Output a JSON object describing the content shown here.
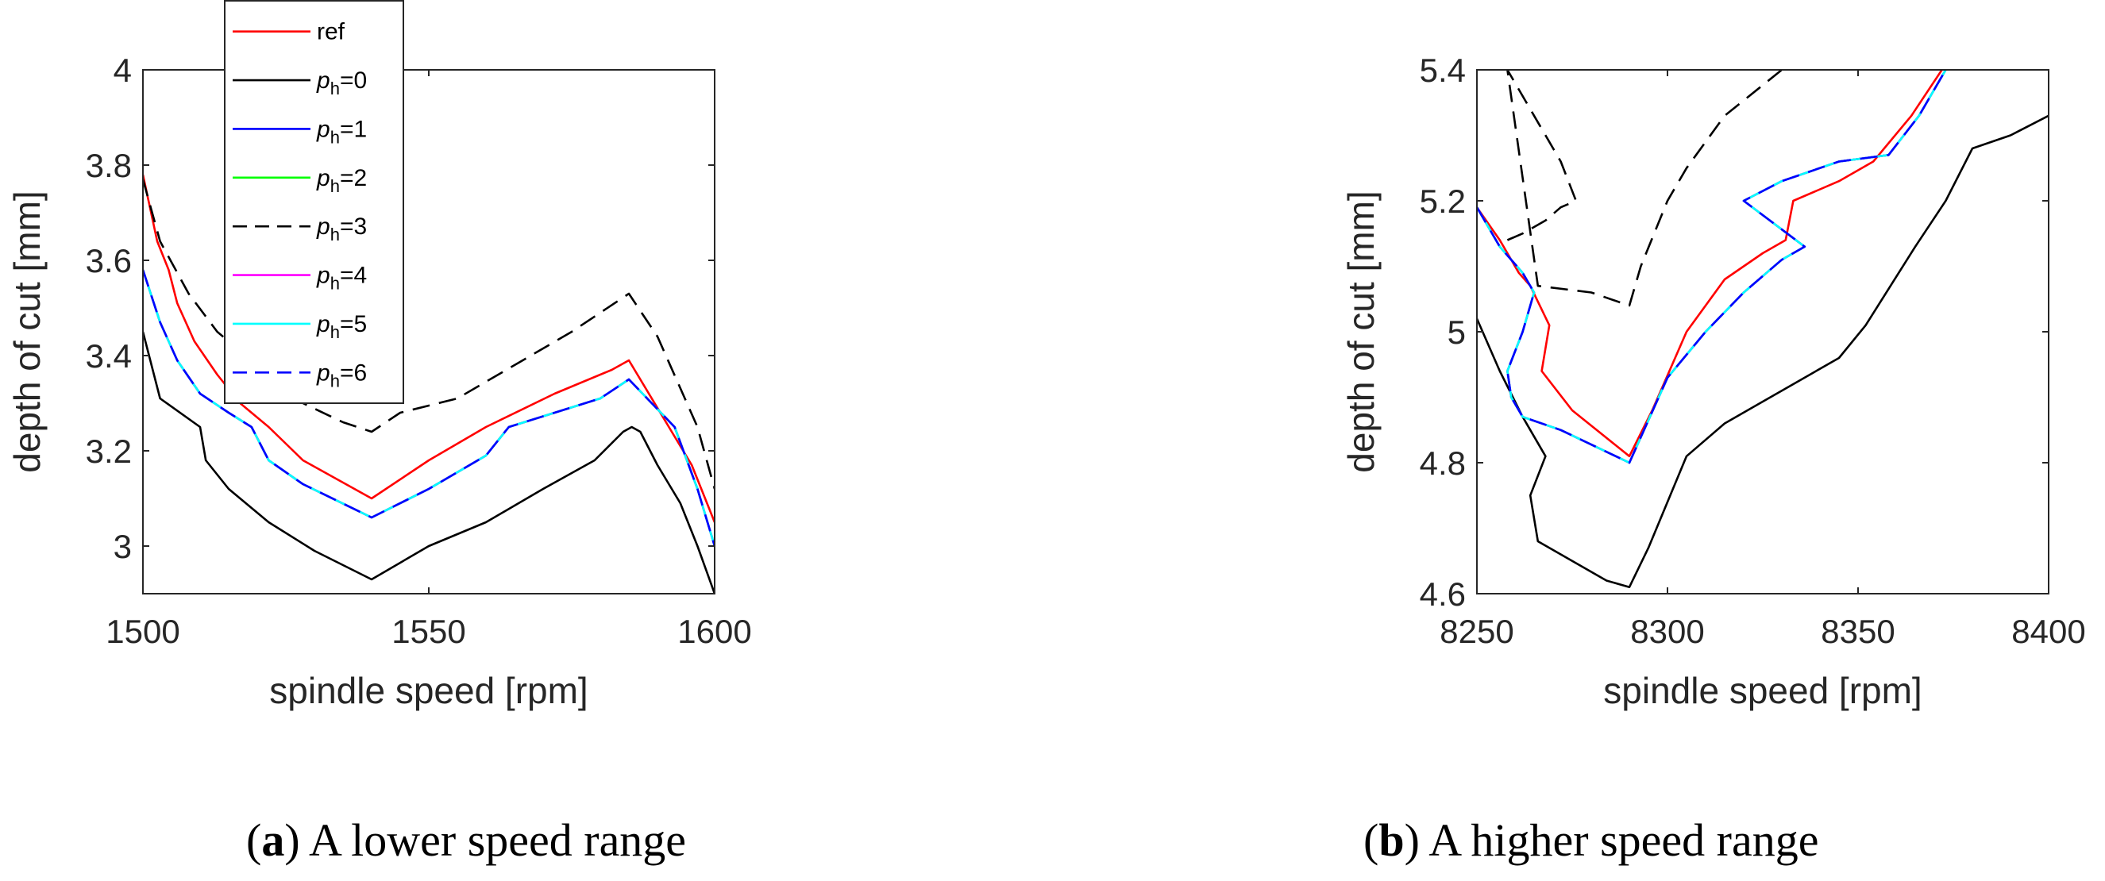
{
  "figure": {
    "captions": [
      {
        "letter": "a",
        "text": "A lower speed range"
      },
      {
        "letter": "b",
        "text": "A higher speed range"
      }
    ]
  },
  "chart_data": [
    {
      "type": "line",
      "panel": "a",
      "xlabel": "spindle speed [rpm]",
      "ylabel": "depth of cut [mm]",
      "xlim": [
        1500,
        1600
      ],
      "ylim": [
        2.9,
        4.0
      ],
      "xticks": [
        1500,
        1550,
        1600
      ],
      "yticks": [
        3,
        3.2,
        3.4,
        3.6,
        3.8,
        4
      ],
      "ytick_labels": [
        "3",
        "3.2",
        "3.4",
        "3.6",
        "3.8",
        "4"
      ],
      "grid": false,
      "legend": {
        "location": "top-left",
        "entries": [
          {
            "label": "ref",
            "color": "#ff0000",
            "dash": "solid"
          },
          {
            "label": "p_h=0",
            "base": "p",
            "sub": "h",
            "suffix": "=0",
            "color": "#000000",
            "dash": "solid"
          },
          {
            "label": "p_h=1",
            "base": "p",
            "sub": "h",
            "suffix": "=1",
            "color": "#0000ff",
            "dash": "solid"
          },
          {
            "label": "p_h=2",
            "base": "p",
            "sub": "h",
            "suffix": "=2",
            "color": "#00ff00",
            "dash": "solid"
          },
          {
            "label": "p_h=3",
            "base": "p",
            "sub": "h",
            "suffix": "=3",
            "color": "#000000",
            "dash": "dashed"
          },
          {
            "label": "p_h=4",
            "base": "p",
            "sub": "h",
            "suffix": "=4",
            "color": "#ff00ff",
            "dash": "solid"
          },
          {
            "label": "p_h=5",
            "base": "p",
            "sub": "h",
            "suffix": "=5",
            "color": "#00ffff",
            "dash": "solid"
          },
          {
            "label": "p_h=6",
            "base": "p",
            "sub": "h",
            "suffix": "=6",
            "color": "#0000ff",
            "dash": "dashed"
          }
        ]
      },
      "series": [
        {
          "name": "ref",
          "color": "#ff0000",
          "dash": "solid",
          "x": [
            1500,
            1502.5,
            1504.5,
            1506,
            1509,
            1513,
            1517,
            1522,
            1528,
            1540,
            1550,
            1560,
            1572,
            1582,
            1585,
            1592,
            1596,
            1600
          ],
          "y": [
            3.78,
            3.64,
            3.58,
            3.51,
            3.43,
            3.36,
            3.3,
            3.25,
            3.18,
            3.1,
            3.18,
            3.25,
            3.32,
            3.37,
            3.39,
            3.25,
            3.17,
            3.05
          ]
        },
        {
          "name": "p_h=0",
          "color": "#000000",
          "dash": "solid",
          "x": [
            1500,
            1503,
            1510,
            1511,
            1515,
            1522,
            1530,
            1540,
            1550,
            1560,
            1570,
            1579,
            1584,
            1585.5,
            1587,
            1590,
            1594,
            1597,
            1600
          ],
          "y": [
            3.45,
            3.31,
            3.25,
            3.18,
            3.12,
            3.05,
            2.99,
            2.93,
            3.0,
            3.05,
            3.12,
            3.18,
            3.24,
            3.25,
            3.24,
            3.17,
            3.09,
            3.0,
            2.9
          ]
        },
        {
          "name": "p_h=1",
          "color": "#0000ff",
          "dash": "solid",
          "x": [
            1500,
            1503,
            1506,
            1510,
            1515,
            1519,
            1522,
            1528,
            1540,
            1550,
            1560,
            1564,
            1572,
            1580,
            1585,
            1589,
            1593,
            1597,
            1600
          ],
          "y": [
            3.58,
            3.47,
            3.39,
            3.32,
            3.28,
            3.25,
            3.18,
            3.13,
            3.06,
            3.12,
            3.19,
            3.25,
            3.28,
            3.31,
            3.35,
            3.3,
            3.25,
            3.12,
            3.0
          ]
        },
        {
          "name": "p_h=2",
          "color": "#00ff00",
          "dash": "solid",
          "x": [
            1500,
            1503,
            1506,
            1510,
            1515,
            1519,
            1522,
            1528,
            1540,
            1550,
            1560,
            1564,
            1572,
            1580,
            1585,
            1589,
            1593,
            1597,
            1600
          ],
          "y": [
            3.58,
            3.47,
            3.39,
            3.32,
            3.28,
            3.25,
            3.18,
            3.13,
            3.06,
            3.12,
            3.19,
            3.25,
            3.28,
            3.31,
            3.35,
            3.3,
            3.25,
            3.12,
            3.0
          ]
        },
        {
          "name": "p_h=3",
          "color": "#000000",
          "dash": "dashed",
          "x": [
            1500,
            1503,
            1508,
            1513,
            1520,
            1528,
            1535,
            1540,
            1545,
            1555,
            1565,
            1575,
            1585,
            1590,
            1597,
            1600
          ],
          "y": [
            3.77,
            3.64,
            3.53,
            3.45,
            3.38,
            3.3,
            3.26,
            3.24,
            3.28,
            3.31,
            3.38,
            3.45,
            3.53,
            3.44,
            3.25,
            3.12
          ]
        },
        {
          "name": "p_h=4",
          "color": "#ff00ff",
          "dash": "solid",
          "x": [
            1500,
            1503,
            1506,
            1510,
            1515,
            1519,
            1522,
            1528,
            1540,
            1550,
            1560,
            1564,
            1572,
            1580,
            1585,
            1589,
            1593,
            1597,
            1600
          ],
          "y": [
            3.58,
            3.47,
            3.39,
            3.32,
            3.28,
            3.25,
            3.18,
            3.13,
            3.06,
            3.12,
            3.19,
            3.25,
            3.28,
            3.31,
            3.35,
            3.3,
            3.25,
            3.12,
            3.0
          ]
        },
        {
          "name": "p_h=5",
          "color": "#00ffff",
          "dash": "solid",
          "x": [
            1500,
            1503,
            1506,
            1510,
            1515,
            1519,
            1522,
            1528,
            1540,
            1550,
            1560,
            1564,
            1572,
            1580,
            1585,
            1589,
            1593,
            1597,
            1600
          ],
          "y": [
            3.58,
            3.47,
            3.39,
            3.32,
            3.28,
            3.25,
            3.18,
            3.13,
            3.06,
            3.12,
            3.19,
            3.25,
            3.28,
            3.31,
            3.35,
            3.3,
            3.25,
            3.12,
            3.0
          ]
        },
        {
          "name": "p_h=6",
          "color": "#0000ff",
          "dash": "dashed",
          "x": [
            1500,
            1503,
            1506,
            1510,
            1515,
            1519,
            1522,
            1528,
            1540,
            1550,
            1560,
            1564,
            1572,
            1580,
            1585,
            1589,
            1593,
            1597,
            1600
          ],
          "y": [
            3.58,
            3.47,
            3.39,
            3.32,
            3.28,
            3.25,
            3.18,
            3.13,
            3.06,
            3.12,
            3.19,
            3.25,
            3.28,
            3.31,
            3.35,
            3.3,
            3.25,
            3.12,
            3.0
          ]
        }
      ]
    },
    {
      "type": "line",
      "panel": "b",
      "xlabel": "spindle speed [rpm]",
      "ylabel": "depth of cut [mm]",
      "xlim": [
        8250,
        8400
      ],
      "ylim": [
        4.6,
        5.4
      ],
      "xticks": [
        8250,
        8300,
        8350,
        8400
      ],
      "yticks": [
        4.6,
        4.8,
        5,
        5.2,
        5.4
      ],
      "ytick_labels": [
        "4.6",
        "4.8",
        "5",
        "5.2",
        "5.4"
      ],
      "grid": false,
      "series": [
        {
          "name": "ref",
          "color": "#ff0000",
          "dash": "solid",
          "x": [
            8250,
            8256,
            8261,
            8264,
            8269,
            8267,
            8275,
            8290,
            8296,
            8305,
            8315,
            8325,
            8331,
            8333,
            8345,
            8354,
            8364,
            8372
          ],
          "y": [
            5.19,
            5.14,
            5.09,
            5.07,
            5.01,
            4.94,
            4.88,
            4.81,
            4.88,
            5.0,
            5.08,
            5.12,
            5.14,
            5.2,
            5.23,
            5.26,
            5.33,
            5.4
          ]
        },
        {
          "name": "p_h=0",
          "color": "#000000",
          "dash": "solid",
          "x": [
            8250,
            8256,
            8262,
            8268,
            8264,
            8266,
            8284,
            8290,
            8295,
            8305,
            8315,
            8330,
            8345,
            8352,
            8365,
            8373,
            8380,
            8390,
            8400
          ],
          "y": [
            5.02,
            4.94,
            4.87,
            4.81,
            4.75,
            4.68,
            4.62,
            4.61,
            4.67,
            4.81,
            4.86,
            4.91,
            4.96,
            5.01,
            5.13,
            5.2,
            5.28,
            5.3,
            5.33
          ]
        },
        {
          "name": "p_h=1",
          "color": "#0000ff",
          "dash": "solid",
          "x": [
            8250,
            8256,
            8262,
            8265,
            8262,
            8258,
            8259,
            8262,
            8272,
            8290,
            8300,
            8310,
            8320,
            8330,
            8336,
            8320,
            8330,
            8345,
            8358,
            8366,
            8373
          ],
          "y": [
            5.19,
            5.13,
            5.09,
            5.06,
            5.0,
            4.94,
            4.9,
            4.87,
            4.85,
            4.8,
            4.93,
            5.0,
            5.06,
            5.11,
            5.13,
            5.2,
            5.23,
            5.26,
            5.27,
            5.33,
            5.4
          ]
        },
        {
          "name": "p_h=2",
          "color": "#00ff00",
          "dash": "solid",
          "x": [
            8250,
            8256,
            8262,
            8265,
            8262,
            8258,
            8259,
            8262,
            8272,
            8290,
            8300,
            8310,
            8320,
            8330,
            8336,
            8320,
            8330,
            8345,
            8358,
            8366,
            8373
          ],
          "y": [
            5.19,
            5.13,
            5.09,
            5.06,
            5.0,
            4.94,
            4.9,
            4.87,
            4.85,
            4.8,
            4.93,
            5.0,
            5.06,
            5.11,
            5.13,
            5.2,
            5.23,
            5.26,
            5.27,
            5.33,
            5.4
          ]
        },
        {
          "name": "p_h=3",
          "color": "#000000",
          "dash": "dashed",
          "x": [
            8258,
            8262,
            8268,
            8272,
            8276,
            8272,
            8265,
            8258,
            8266,
            8280,
            8290,
            8293,
            8300,
            8305,
            8315,
            8330
          ],
          "y": [
            5.14,
            5.15,
            5.17,
            5.19,
            5.2,
            5.26,
            5.33,
            5.4,
            5.07,
            5.06,
            5.04,
            5.1,
            5.2,
            5.25,
            5.33,
            5.4
          ]
        },
        {
          "name": "p_h=4",
          "color": "#ff00ff",
          "dash": "solid",
          "x": [
            8250,
            8256,
            8262,
            8265,
            8262,
            8258,
            8259,
            8262,
            8272,
            8290,
            8300,
            8310,
            8320,
            8330,
            8336,
            8320,
            8330,
            8345,
            8358,
            8366,
            8373
          ],
          "y": [
            5.19,
            5.13,
            5.09,
            5.06,
            5.0,
            4.94,
            4.9,
            4.87,
            4.85,
            4.8,
            4.93,
            5.0,
            5.06,
            5.11,
            5.13,
            5.2,
            5.23,
            5.26,
            5.27,
            5.33,
            5.4
          ]
        },
        {
          "name": "p_h=5",
          "color": "#00ffff",
          "dash": "solid",
          "x": [
            8250,
            8256,
            8262,
            8265,
            8262,
            8258,
            8259,
            8262,
            8272,
            8290,
            8300,
            8310,
            8320,
            8330,
            8336,
            8320,
            8330,
            8345,
            8358,
            8366,
            8373
          ],
          "y": [
            5.19,
            5.13,
            5.09,
            5.06,
            5.0,
            4.94,
            4.9,
            4.87,
            4.85,
            4.8,
            4.93,
            5.0,
            5.06,
            5.11,
            5.13,
            5.2,
            5.23,
            5.26,
            5.27,
            5.33,
            5.4
          ]
        },
        {
          "name": "p_h=6",
          "color": "#0000ff",
          "dash": "dashed",
          "x": [
            8250,
            8256,
            8262,
            8265,
            8262,
            8258,
            8259,
            8262,
            8272,
            8290,
            8300,
            8310,
            8320,
            8330,
            8336,
            8320,
            8330,
            8345,
            8358,
            8366,
            8373
          ],
          "y": [
            5.19,
            5.13,
            5.09,
            5.06,
            5.0,
            4.94,
            4.9,
            4.87,
            4.85,
            4.8,
            4.93,
            5.0,
            5.06,
            5.11,
            5.13,
            5.2,
            5.23,
            5.26,
            5.27,
            5.33,
            5.4
          ]
        }
      ]
    }
  ]
}
